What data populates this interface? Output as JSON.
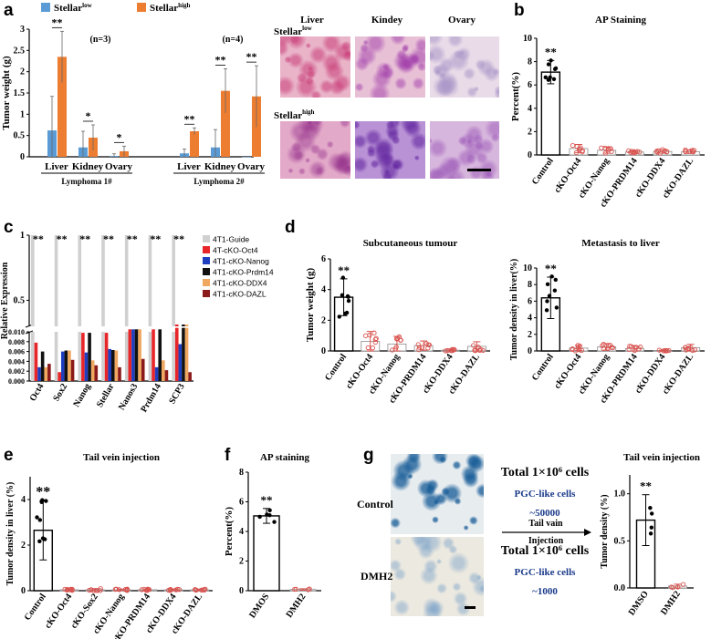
{
  "panels": {
    "a": {
      "letter": "a"
    },
    "b": {
      "letter": "b"
    },
    "c": {
      "letter": "c"
    },
    "d": {
      "letter": "d"
    },
    "e": {
      "letter": "e"
    },
    "f": {
      "letter": "f"
    },
    "g": {
      "letter": "g"
    }
  },
  "histology_a": {
    "columns": [
      "Liver",
      "Kindey",
      "Ovary"
    ],
    "rows": [
      {
        "label_main": "Stellar",
        "label_sup": "low"
      },
      {
        "label_main": "Stellar",
        "label_sup": "high"
      }
    ]
  },
  "panel_g": {
    "rows": [
      "Control",
      "DMH2"
    ],
    "total_1": "Total 1×10⁶ cells",
    "total_2": "Total 1×10⁶ cells",
    "pgc_1": "PGC-like cells",
    "pgc_2": "PGC-like cells",
    "count_1": "~50000",
    "count_2": "~1000",
    "arrow_top": "Tail vain",
    "arrow_bottom": "Injection"
  },
  "colors": {
    "stellar_low": "#5B9BD5",
    "stellar_high": "#ED7D31",
    "control_bar": "#ffffff",
    "ko_points": "#d9534f",
    "guide_bar": "#d0d0d0",
    "ap_blue": "#1a5fa8"
  },
  "chart_data": [
    {
      "id": "a",
      "type": "bar",
      "ylabel": "Tumor weight (g)",
      "ylim": [
        0,
        3
      ],
      "yticks": [
        0,
        0.5,
        1,
        1.5,
        2,
        2.5,
        3
      ],
      "legend": [
        "Stellarlow",
        "Stellarhigh"
      ],
      "legend_main": "Stellar",
      "legend_sup": [
        "low",
        "high"
      ],
      "groups": [
        {
          "name": "Lymphoma 1#",
          "n_label": "(n=3)",
          "categories": [
            "Liver",
            "Kidney",
            "Ovary"
          ],
          "low": [
            0.62,
            0.22,
            0.02
          ],
          "high": [
            2.35,
            0.45,
            0.13
          ],
          "low_err": [
            0.8,
            0.38,
            0.05
          ],
          "high_err": [
            0.6,
            0.3,
            0.12
          ],
          "sig": [
            "**",
            "*",
            "*"
          ]
        },
        {
          "name": "Lymphoma 2#",
          "n_label": "(n=4)",
          "categories": [
            "Liver",
            "Kidney",
            "Ovary"
          ],
          "low": [
            0.08,
            0.22,
            0.0
          ],
          "high": [
            0.6,
            1.55,
            1.42
          ],
          "low_err": [
            0.1,
            0.42,
            0.0
          ],
          "high_err": [
            0.08,
            0.52,
            0.72
          ],
          "sig": [
            "**",
            "**",
            "**"
          ]
        }
      ]
    },
    {
      "id": "b",
      "type": "bar",
      "title": "AP Staining",
      "ylabel": "Percent(%)",
      "ylim": [
        0,
        10
      ],
      "yticks": [
        0,
        2,
        4,
        6,
        8,
        10
      ],
      "categories": [
        "Control",
        "cKO-Oct4",
        "cKO-Nanog",
        "cKO-PRDM14",
        "cKO-DDX4",
        "cKO-DAZL"
      ],
      "values": [
        7.1,
        0.55,
        0.4,
        0.25,
        0.3,
        0.28
      ],
      "errors": [
        1.0,
        0.35,
        0.25,
        0.12,
        0.15,
        0.15
      ],
      "sig": "**"
    },
    {
      "id": "c",
      "type": "bar",
      "ylabel": "Relative Expression",
      "yticks_lower": [
        "0.000",
        "0.002",
        "0.004",
        "0.006",
        "0.008",
        "0.010"
      ],
      "yticks_lower_vals": [
        0,
        0.002,
        0.004,
        0.006,
        0.008,
        0.01
      ],
      "yticks_upper": [
        "0.5",
        "1"
      ],
      "categories": [
        "Oct4",
        "Sox2",
        "Nanog",
        "Stellar",
        "Nanos3",
        "Prdm14",
        "SCP3"
      ],
      "series": [
        {
          "name": "4T1-Guide",
          "values": [
            1,
            1,
            1,
            1,
            1,
            1,
            1
          ]
        },
        {
          "name": "4T-cKO-Oct4",
          "values": [
            0.0078,
            0.0018,
            0.0098,
            0.0098,
            0.0105,
            0.0105,
            0.0125
          ]
        },
        {
          "name": "4T1-cKO-Nanog",
          "values": [
            0.0028,
            0.006,
            0.0058,
            0.0065,
            0.0105,
            0.0028,
            0.0075
          ]
        },
        {
          "name": "4T1-cKO-Prdm14",
          "values": [
            0.006,
            0.0062,
            0.0098,
            0.0063,
            0.0105,
            0.0105,
            0.0115
          ]
        },
        {
          "name": "4T1-cKO-DDX4",
          "values": [
            0.0028,
            0.0062,
            0.0042,
            0.0062,
            0.0105,
            0.0042,
            0.0118
          ]
        },
        {
          "name": "4T1-cKO-DAZL",
          "values": [
            0.0035,
            0.0043,
            0.0032,
            0.0028,
            0.0045,
            0.0022,
            0.0018
          ]
        }
      ],
      "sig": "**"
    },
    {
      "id": "d1",
      "type": "bar",
      "title": "Subcutaneous tumour",
      "ylabel": "Tumor weight (g)",
      "ylim": [
        0,
        6
      ],
      "yticks": [
        0,
        2,
        4,
        6
      ],
      "categories": [
        "Control",
        "cKO-Oct4",
        "cKO-Nanog",
        "cKO-PRDM14",
        "cKO-DDX4",
        "cKO-DAZL"
      ],
      "values": [
        3.5,
        0.62,
        0.45,
        0.35,
        0.05,
        0.3
      ],
      "errors": [
        1.2,
        0.65,
        0.5,
        0.3,
        0.08,
        0.3
      ],
      "sig": "**"
    },
    {
      "id": "d2",
      "type": "bar",
      "title": "Metastasis to liver",
      "ylabel": "Tumor density in liver(%)",
      "ylim": [
        0,
        10
      ],
      "yticks": [
        0,
        2,
        4,
        6,
        8,
        10
      ],
      "categories": [
        "Control",
        "cKO-Oct4",
        "cKO-Nanog",
        "cKO-PRDM14",
        "cKO-DDX4",
        "cKO-DAZL"
      ],
      "values": [
        6.4,
        0.35,
        0.5,
        0.3,
        0.05,
        0.4
      ],
      "errors": [
        2.5,
        0.3,
        0.4,
        0.3,
        0.05,
        0.4
      ],
      "sig": "**"
    },
    {
      "id": "e",
      "type": "bar",
      "title": "Tail vein injection",
      "ylabel": "Tumor density in liver (%)",
      "ylim": [
        0,
        5
      ],
      "yticks": [
        0,
        2,
        4
      ],
      "categories": [
        "Control",
        "cKO-Oct4",
        "cKO-Sox2",
        "cKO-Nanog",
        "cKO-PRDM14",
        "cKO-DDX4",
        "cKO-DAZL"
      ],
      "values": [
        2.65,
        0.04,
        0.04,
        0.04,
        0.04,
        0.04,
        0.04
      ],
      "errors": [
        1.3,
        0.03,
        0.05,
        0.03,
        0.03,
        0.03,
        0.03
      ],
      "sig": "**"
    },
    {
      "id": "f",
      "type": "bar",
      "title": "AP staining",
      "ylabel": "Percent(%)",
      "ylim": [
        0,
        8
      ],
      "yticks": [
        0,
        2,
        4,
        6,
        8
      ],
      "categories": [
        "DMOS",
        "DMH2"
      ],
      "values": [
        5.05,
        0.08
      ],
      "errors": [
        0.5,
        0.05
      ],
      "sig": "**"
    },
    {
      "id": "g",
      "type": "bar",
      "title": "Tail vein injection",
      "ylabel": "Tumor density (%)",
      "ylim": [
        0,
        1.2
      ],
      "yticks": [
        "0.0",
        "0.5",
        "1.0"
      ],
      "yticks_vals": [
        0,
        0.5,
        1.0
      ],
      "categories": [
        "DMSO",
        "DMH2"
      ],
      "values": [
        0.72,
        0.02
      ],
      "errors": [
        0.27,
        0.02
      ],
      "sig": "**"
    }
  ]
}
